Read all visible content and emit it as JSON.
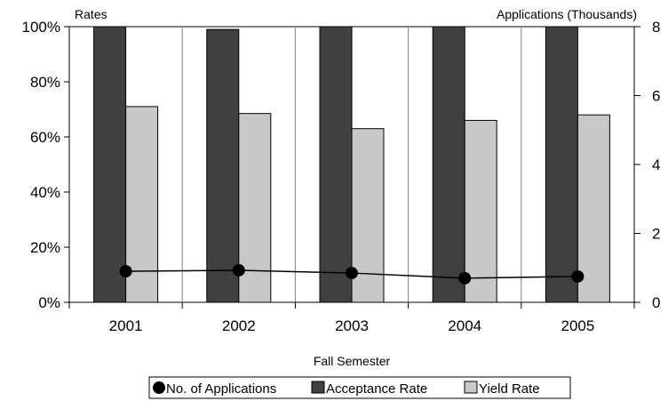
{
  "chart_data": {
    "type": "bar",
    "xlabel": "Fall Semester",
    "ylabel_left": "Rates",
    "ylabel_right": "Applications (Thousands)",
    "categories": [
      "2001",
      "2002",
      "2003",
      "2004",
      "2005"
    ],
    "left_axis": {
      "ylim": [
        0,
        100
      ],
      "ticks": [
        0,
        20,
        40,
        60,
        80,
        100
      ],
      "tick_labels": [
        "0%",
        "20%",
        "40%",
        "60%",
        "80%",
        "100%"
      ]
    },
    "right_axis": {
      "ylim": [
        0,
        8
      ],
      "ticks": [
        0,
        2,
        4,
        6,
        8
      ],
      "tick_labels": [
        "0",
        "2",
        "4",
        "6",
        "8"
      ]
    },
    "series": [
      {
        "name": "No. of Applications",
        "type": "line",
        "axis": "right",
        "color": "#000000",
        "values": [
          0.9,
          0.93,
          0.85,
          0.7,
          0.75
        ]
      },
      {
        "name": "Acceptance Rate",
        "type": "bar",
        "axis": "left",
        "color": "#404040",
        "values": [
          100,
          99,
          100,
          100,
          100
        ]
      },
      {
        "name": "Yield Rate",
        "type": "bar",
        "axis": "left",
        "color": "#c8c8c8",
        "values": [
          71,
          68.5,
          63,
          66,
          68
        ]
      }
    ],
    "grid": "vertical",
    "legend_position": "bottom"
  }
}
